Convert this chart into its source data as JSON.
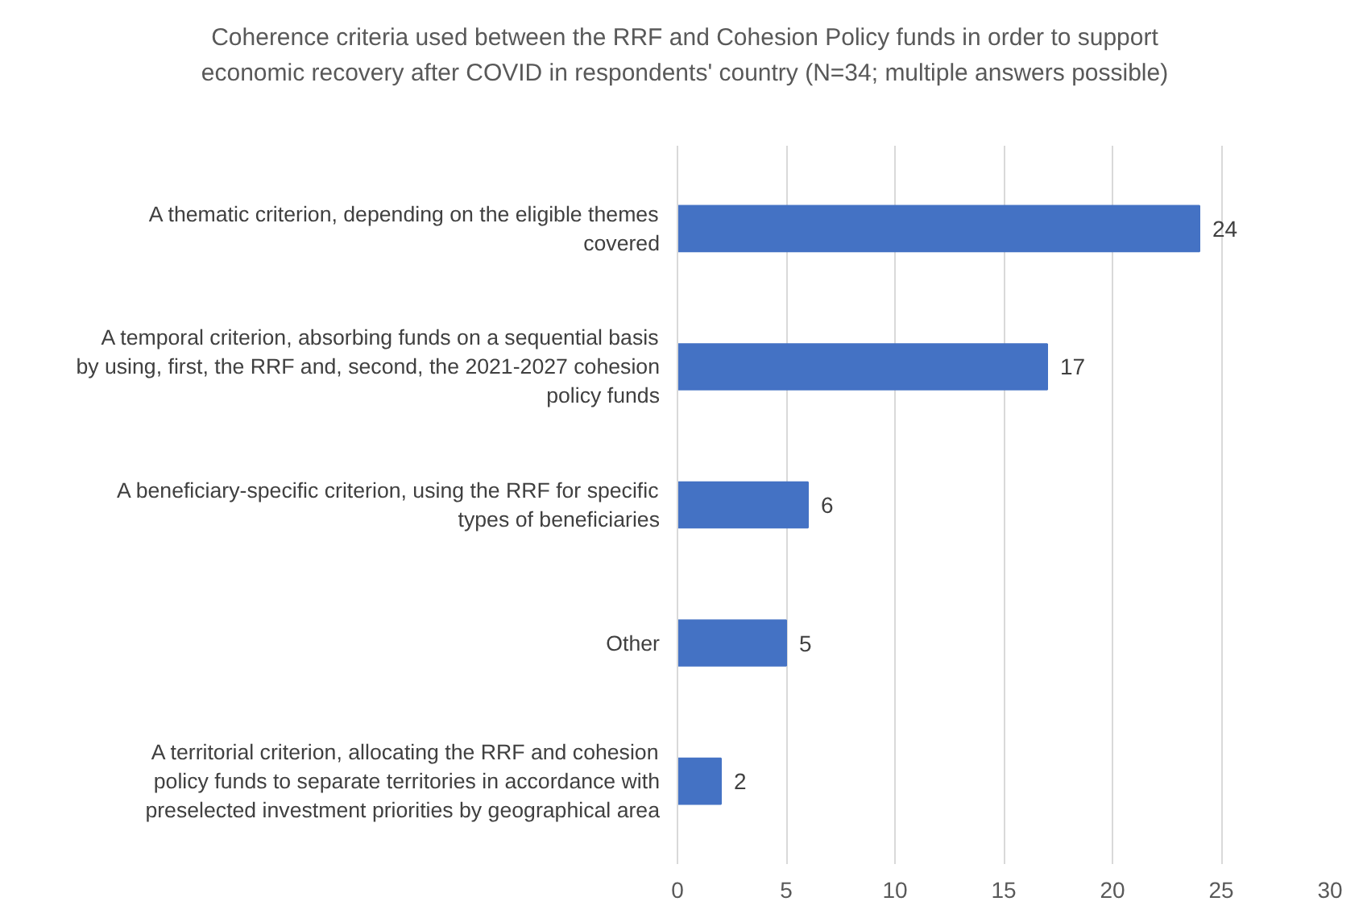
{
  "chart_data": {
    "type": "bar",
    "orientation": "horizontal",
    "title": "Coherence criteria used between the RRF and Cohesion Policy funds in order to support economic recovery after COVID in respondents' country (N=34; multiple answers possible)",
    "categories": [
      "A thematic criterion, depending on the eligible themes covered",
      "A temporal criterion, absorbing funds on a sequential basis by using, first, the RRF and, second, the 2021-2027 cohesion policy funds",
      "A beneficiary-specific criterion, using the RRF for specific types of beneficiaries",
      "Other",
      "A territorial criterion, allocating the RRF and cohesion policy funds to separate territories in accordance with preselected investment priorities by geographical area"
    ],
    "values": [
      24,
      17,
      6,
      5,
      2
    ],
    "color": "#4472c4",
    "xlim": [
      0,
      30
    ],
    "xticks": [
      0,
      5,
      10,
      15,
      20,
      25,
      30
    ],
    "grid": "x",
    "data_labels": true
  }
}
